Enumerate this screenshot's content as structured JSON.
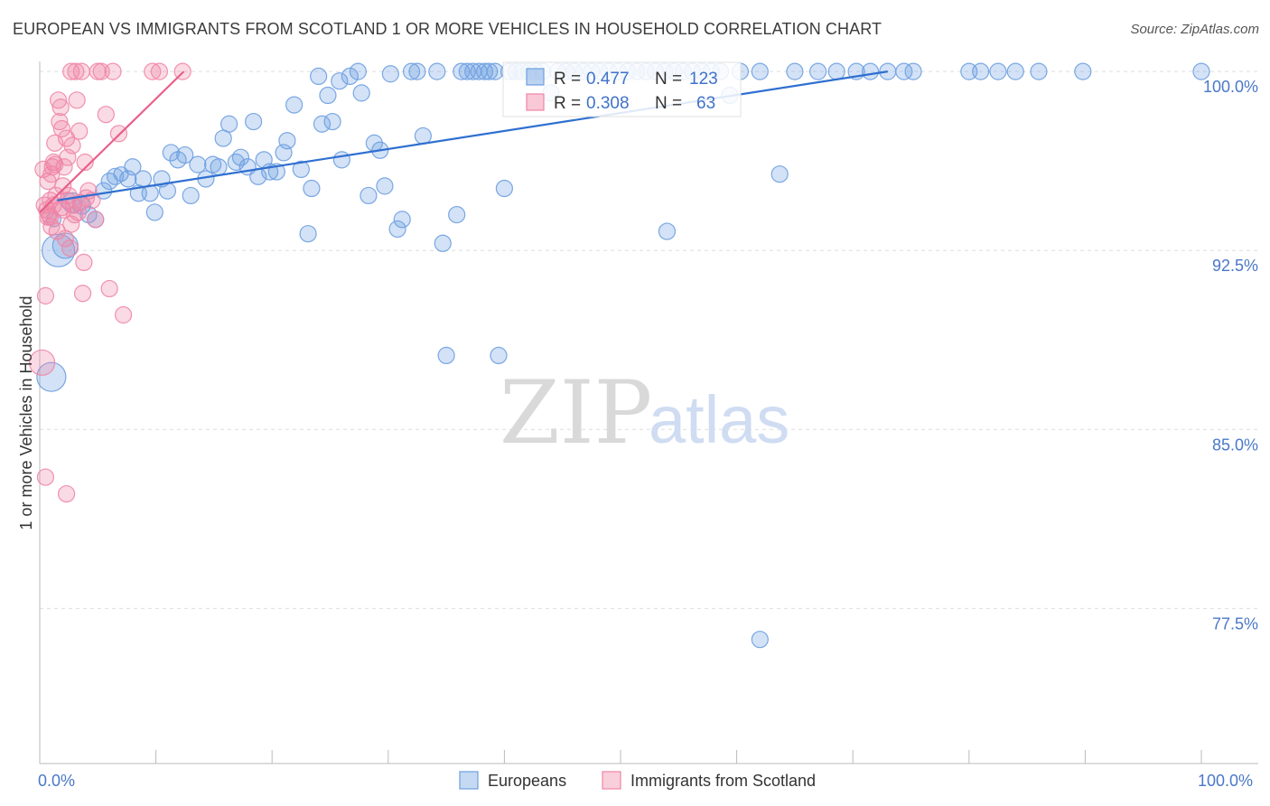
{
  "title": "EUROPEAN VS IMMIGRANTS FROM SCOTLAND 1 OR MORE VEHICLES IN HOUSEHOLD CORRELATION CHART",
  "source": "Source: ZipAtlas.com",
  "watermark": {
    "zip": "ZIP",
    "atlas": "atlas"
  },
  "colors": {
    "blue": "#6d9fe0",
    "pink": "#ef86a6",
    "blue_line": "#2f6fd0",
    "pink_line": "#e8608a",
    "tick": "#4a78c8"
  },
  "legend_box": {
    "rows": [
      {
        "r_label": "R =",
        "r_value": "0.477",
        "n_label": "N =",
        "n_value": "123"
      },
      {
        "r_label": "R =",
        "r_value": "0.308",
        "n_label": "N =",
        "n_value": "63"
      }
    ]
  },
  "bottom_legend": [
    "Europeans",
    "Immigrants from Scotland"
  ],
  "chart_data": {
    "type": "scatter",
    "xlabel": "",
    "ylabel": "1 or more Vehicles in Household",
    "xlim": [
      0,
      100
    ],
    "ylim": [
      71,
      100.8
    ],
    "x_tick_labels": [
      "0.0%",
      "100.0%"
    ],
    "y_ticks": [
      77.5,
      85.0,
      92.5,
      100.0
    ],
    "y_tick_labels": [
      "77.5%",
      "85.0%",
      "92.5%",
      "100.0%"
    ],
    "grid": true,
    "series": [
      {
        "name": "Europeans",
        "color": "#6d9fe0",
        "trend": {
          "x": [
            1.5,
            73.0
          ],
          "y": [
            94.6,
            100.0
          ]
        },
        "points": [
          [
            1.0,
            87.2,
            16
          ],
          [
            1.6,
            92.5,
            18
          ],
          [
            2.2,
            92.7,
            14
          ],
          [
            2.8,
            94.5,
            11
          ],
          [
            3.6,
            94.4,
            10
          ],
          [
            1.2,
            93.8,
            8
          ],
          [
            4.2,
            94.0,
            9
          ],
          [
            4.8,
            93.8,
            9
          ],
          [
            5.5,
            95.0,
            9
          ],
          [
            6.0,
            95.4,
            9
          ],
          [
            6.5,
            95.6,
            9
          ],
          [
            7.0,
            95.7,
            8
          ],
          [
            7.6,
            95.5,
            9
          ],
          [
            8.0,
            96.0,
            9
          ],
          [
            8.5,
            94.9,
            9
          ],
          [
            8.9,
            95.5,
            9
          ],
          [
            9.5,
            94.9,
            9
          ],
          [
            9.9,
            94.1,
            9
          ],
          [
            10.5,
            95.5,
            9
          ],
          [
            11.0,
            95.0,
            9
          ],
          [
            11.3,
            96.6,
            9
          ],
          [
            11.9,
            96.3,
            9
          ],
          [
            12.5,
            96.5,
            9
          ],
          [
            13.0,
            94.8,
            9
          ],
          [
            13.6,
            96.1,
            9
          ],
          [
            14.3,
            95.5,
            9
          ],
          [
            14.9,
            96.1,
            9
          ],
          [
            15.4,
            96.0,
            9
          ],
          [
            15.8,
            97.2,
            9
          ],
          [
            16.3,
            97.8,
            9
          ],
          [
            16.9,
            96.2,
            9
          ],
          [
            17.3,
            96.4,
            9
          ],
          [
            17.9,
            96.0,
            9
          ],
          [
            18.4,
            97.9,
            9
          ],
          [
            18.8,
            95.6,
            9
          ],
          [
            19.3,
            96.3,
            9
          ],
          [
            19.8,
            95.8,
            9
          ],
          [
            20.4,
            95.8,
            9
          ],
          [
            21.0,
            96.6,
            9
          ],
          [
            21.3,
            97.1,
            9
          ],
          [
            21.9,
            98.6,
            9
          ],
          [
            22.5,
            95.9,
            9
          ],
          [
            23.1,
            93.2,
            9
          ],
          [
            23.4,
            95.1,
            9
          ],
          [
            24.0,
            99.8,
            9
          ],
          [
            24.3,
            97.8,
            9
          ],
          [
            24.8,
            99.0,
            9
          ],
          [
            25.2,
            97.9,
            9
          ],
          [
            25.8,
            99.6,
            9
          ],
          [
            26.0,
            96.3,
            9
          ],
          [
            26.7,
            99.8,
            9
          ],
          [
            27.4,
            100.0,
            9
          ],
          [
            27.7,
            99.1,
            9
          ],
          [
            28.3,
            94.8,
            9
          ],
          [
            28.8,
            97.0,
            9
          ],
          [
            29.3,
            96.7,
            9
          ],
          [
            29.7,
            95.2,
            9
          ],
          [
            30.2,
            99.9,
            9
          ],
          [
            30.8,
            93.4,
            9
          ],
          [
            31.2,
            93.8,
            9
          ],
          [
            32.0,
            100.0,
            9
          ],
          [
            32.5,
            100.0,
            9
          ],
          [
            33.0,
            97.3,
            9
          ],
          [
            34.2,
            100.0,
            9
          ],
          [
            34.7,
            92.8,
            9
          ],
          [
            35.0,
            88.1,
            9
          ],
          [
            35.9,
            94.0,
            9
          ],
          [
            36.3,
            100.0,
            9
          ],
          [
            36.8,
            100.0,
            9
          ],
          [
            37.3,
            100.0,
            9
          ],
          [
            37.8,
            100.0,
            9
          ],
          [
            38.3,
            100.0,
            9
          ],
          [
            38.7,
            100.0,
            9
          ],
          [
            39.2,
            100.0,
            9
          ],
          [
            39.5,
            88.1,
            9
          ],
          [
            40.0,
            95.1,
            9
          ],
          [
            40.4,
            100.0,
            9
          ],
          [
            41.0,
            100.0,
            9
          ],
          [
            41.5,
            100.0,
            9
          ],
          [
            42.1,
            100.0,
            9
          ],
          [
            42.7,
            100.0,
            9
          ],
          [
            43.3,
            100.0,
            9
          ],
          [
            44.0,
            99.1,
            9
          ],
          [
            44.6,
            100.0,
            9
          ],
          [
            45.3,
            100.0,
            9
          ],
          [
            46.0,
            100.0,
            9
          ],
          [
            46.8,
            100.0,
            9
          ],
          [
            47.5,
            100.0,
            9
          ],
          [
            48.2,
            100.0,
            9
          ],
          [
            49.0,
            100.0,
            9
          ],
          [
            49.8,
            100.0,
            9
          ],
          [
            50.6,
            100.0,
            9
          ],
          [
            51.4,
            100.0,
            9
          ],
          [
            52.2,
            100.0,
            9
          ],
          [
            53.0,
            100.0,
            9
          ],
          [
            53.8,
            100.0,
            9
          ],
          [
            54.6,
            100.0,
            9
          ],
          [
            55.4,
            100.0,
            9
          ],
          [
            56.2,
            100.0,
            9
          ],
          [
            57.0,
            100.0,
            9
          ],
          [
            57.8,
            100.0,
            9
          ],
          [
            58.6,
            100.0,
            9
          ],
          [
            59.4,
            99.0,
            9
          ],
          [
            60.3,
            100.0,
            9
          ],
          [
            62.0,
            100.0,
            9
          ],
          [
            62.0,
            76.2,
            9
          ],
          [
            63.7,
            95.7,
            9
          ],
          [
            67.0,
            100.0,
            9
          ],
          [
            68.6,
            100.0,
            9
          ],
          [
            70.3,
            100.0,
            9
          ],
          [
            71.5,
            100.0,
            9
          ],
          [
            73.0,
            100.0,
            9
          ],
          [
            74.4,
            100.0,
            9
          ],
          [
            75.2,
            100.0,
            9
          ],
          [
            81.0,
            100.0,
            9
          ],
          [
            82.5,
            100.0,
            9
          ],
          [
            84.0,
            100.0,
            9
          ],
          [
            89.8,
            100.0,
            9
          ],
          [
            100.0,
            100.0,
            9
          ],
          [
            54.0,
            93.3,
            9
          ],
          [
            65.0,
            100.0,
            9
          ],
          [
            80.0,
            100.0,
            9
          ],
          [
            86.0,
            100.0,
            9
          ]
        ]
      },
      {
        "name": "Immigrants from Scotland",
        "color": "#ef86a6",
        "trend": {
          "x": [
            0.0,
            12.4
          ],
          "y": [
            94.1,
            100.0
          ]
        },
        "points": [
          [
            0.2,
            87.8,
            14
          ],
          [
            0.5,
            90.6,
            9
          ],
          [
            0.4,
            94.4,
            9
          ],
          [
            0.6,
            94.2,
            9
          ],
          [
            0.7,
            93.9,
            9
          ],
          [
            0.8,
            94.0,
            9
          ],
          [
            0.9,
            94.6,
            9
          ],
          [
            1.0,
            95.7,
            9
          ],
          [
            1.1,
            96.0,
            9
          ],
          [
            1.2,
            96.2,
            9
          ],
          [
            1.3,
            97.0,
            9
          ],
          [
            1.4,
            94.8,
            9
          ],
          [
            1.5,
            93.3,
            9
          ],
          [
            1.6,
            98.8,
            9
          ],
          [
            1.7,
            97.9,
            9
          ],
          [
            1.8,
            98.5,
            9
          ],
          [
            1.9,
            97.6,
            9
          ],
          [
            2.0,
            94.2,
            9
          ],
          [
            2.1,
            96.0,
            9
          ],
          [
            2.2,
            93.0,
            9
          ],
          [
            2.3,
            97.2,
            9
          ],
          [
            2.4,
            96.4,
            9
          ],
          [
            2.5,
            94.8,
            9
          ],
          [
            2.6,
            92.6,
            9
          ],
          [
            2.7,
            93.6,
            9
          ],
          [
            2.8,
            96.9,
            9
          ],
          [
            2.9,
            94.4,
            9
          ],
          [
            3.0,
            94.0,
            9
          ],
          [
            3.1,
            100.0,
            9
          ],
          [
            3.2,
            98.8,
            9
          ],
          [
            3.4,
            97.5,
            9
          ],
          [
            3.5,
            94.5,
            9
          ],
          [
            3.6,
            100.0,
            9
          ],
          [
            3.7,
            90.7,
            9
          ],
          [
            3.8,
            92.0,
            9
          ],
          [
            3.9,
            96.2,
            9
          ],
          [
            4.2,
            95.0,
            9
          ],
          [
            4.5,
            94.6,
            9
          ],
          [
            4.8,
            93.8,
            9
          ],
          [
            5.0,
            100.0,
            9
          ],
          [
            5.3,
            100.0,
            9
          ],
          [
            5.7,
            98.2,
            9
          ],
          [
            6.0,
            90.9,
            9
          ],
          [
            6.3,
            100.0,
            9
          ],
          [
            6.8,
            97.4,
            9
          ],
          [
            7.2,
            89.8,
            9
          ],
          [
            9.7,
            100.0,
            9
          ],
          [
            10.3,
            100.0,
            9
          ],
          [
            12.3,
            100.0,
            9
          ],
          [
            0.5,
            83.0,
            9
          ],
          [
            2.3,
            82.3,
            9
          ],
          [
            1.0,
            93.5,
            9
          ],
          [
            1.3,
            96.1,
            9
          ],
          [
            1.9,
            94.3,
            9
          ],
          [
            2.7,
            100.0,
            9
          ],
          [
            3.3,
            94.1,
            9
          ],
          [
            4.0,
            94.7,
            9
          ],
          [
            0.7,
            95.4,
            9
          ],
          [
            0.3,
            95.9,
            9
          ],
          [
            2.0,
            95.2,
            9
          ],
          [
            1.2,
            94.4,
            9
          ],
          [
            2.4,
            94.6,
            9
          ],
          [
            0.9,
            93.9,
            9
          ]
        ]
      }
    ]
  }
}
